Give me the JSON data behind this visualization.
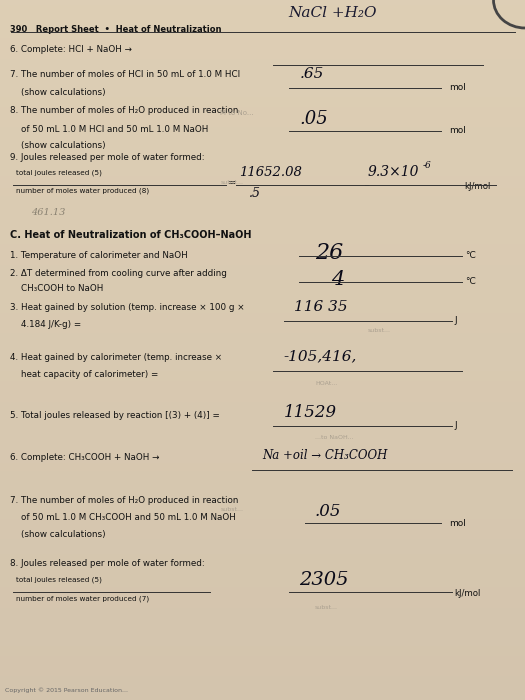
{
  "bg_color": "#b8a888",
  "paper_color": "#d8ccb8",
  "paper_color2": "#ccc0a8",
  "title": "390   Report Sheet  •  Heat of Neutralization",
  "items": [
    {
      "label": "6. Complete: HCl + NaOH →",
      "lines": 1
    },
    {
      "label": "7. The number of moles of HCl in 50 mL of 1.0 M HCl",
      "lines": 2,
      "line2": "    (show calculations)"
    },
    {
      "label": "8. The number of moles of H₂O produced in reaction",
      "lines": 3,
      "line2": "    of 50 mL 1.0 M HCl and 50 mL 1.0 M NaOH",
      "line3": "    (show calculations)"
    },
    {
      "label": "9. Joules released per mole of water formed:",
      "lines": 1
    }
  ],
  "section_c_title": "C. Heat of Neutralization of CH₃COOH–NaOH",
  "c_items": [
    {
      "label": "1. Temperature of calorimeter and NaOH",
      "lines": 1
    },
    {
      "label": "2. ΔT determined from cooling curve after adding",
      "lines": 2,
      "line2": "    CH₃COOH to NaOH"
    },
    {
      "label": "3. Heat gained by solution (temp. increase × 100 g ×",
      "lines": 2,
      "line2": "    4.184 J/K-g) ="
    },
    {
      "label": "4. Heat gained by calorimeter (temp. increase ×",
      "lines": 2,
      "line2": "    heat capacity of calorimeter) ="
    },
    {
      "label": "5. Total joules released by reaction [(3) + (4)] =",
      "lines": 1
    },
    {
      "label": "6. Complete: CH₃COOH + NaOH →",
      "lines": 1
    },
    {
      "label": "7. The number of moles of H₂O produced in reaction",
      "lines": 3,
      "line2": "    of 50 mL 1.0 M CH₃COOH and 50 mL 1.0 M NaOH",
      "line3": "    (show calculations)"
    },
    {
      "label": "8. Joules released per mole of water formed:",
      "lines": 1
    }
  ],
  "copyright": "Copyright © 2015 Pearson Education..."
}
